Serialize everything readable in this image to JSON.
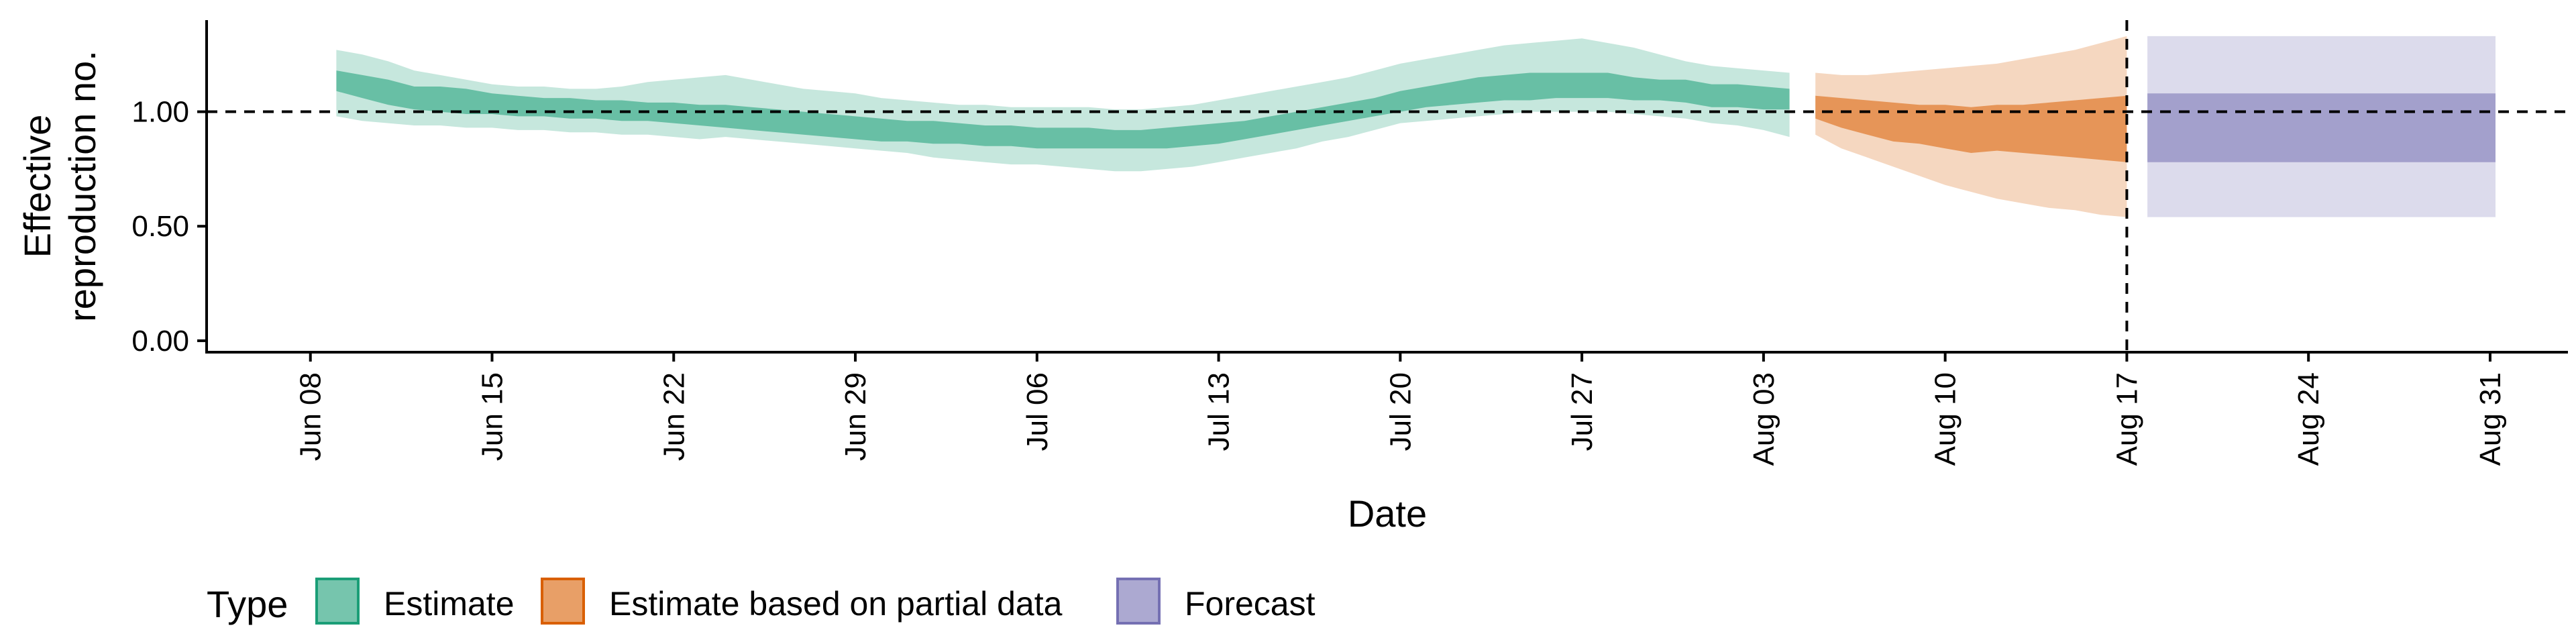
{
  "chart_data": {
    "type": "area",
    "xlabel": "Date",
    "ylabel_lines": [
      "Effective",
      "reproduction no."
    ],
    "ylim": [
      -0.05,
      1.4
    ],
    "y_ticks": [
      0.0,
      0.5,
      1.0
    ],
    "y_tick_labels": [
      "0.00",
      "0.50",
      "1.00"
    ],
    "x_range": [
      "2020-06-04",
      "2020-09-03"
    ],
    "x_ticks": [
      "2020-06-08",
      "2020-06-15",
      "2020-06-22",
      "2020-06-29",
      "2020-07-06",
      "2020-07-13",
      "2020-07-20",
      "2020-07-27",
      "2020-08-03",
      "2020-08-10",
      "2020-08-17",
      "2020-08-24",
      "2020-08-31"
    ],
    "x_tick_labels": [
      "Jun 08",
      "Jun 15",
      "Jun 22",
      "Jun 29",
      "Jul 06",
      "Jul 13",
      "Jul 20",
      "Jul 27",
      "Aug 03",
      "Aug 10",
      "Aug 17",
      "Aug 24",
      "Aug 31"
    ],
    "reference_hline": 1.0,
    "reference_vline": "2020-08-17",
    "grid": false,
    "legend_position": "bottom-left",
    "legend_title": "Type",
    "series": [
      {
        "name": "Estimate",
        "color": "#1b9e77",
        "dates": [
          "2020-06-09",
          "2020-06-10",
          "2020-06-11",
          "2020-06-12",
          "2020-06-13",
          "2020-06-14",
          "2020-06-15",
          "2020-06-16",
          "2020-06-17",
          "2020-06-18",
          "2020-06-19",
          "2020-06-20",
          "2020-06-21",
          "2020-06-22",
          "2020-06-23",
          "2020-06-24",
          "2020-06-25",
          "2020-06-26",
          "2020-06-27",
          "2020-06-28",
          "2020-06-29",
          "2020-06-30",
          "2020-07-01",
          "2020-07-02",
          "2020-07-03",
          "2020-07-04",
          "2020-07-05",
          "2020-07-06",
          "2020-07-07",
          "2020-07-08",
          "2020-07-09",
          "2020-07-10",
          "2020-07-11",
          "2020-07-12",
          "2020-07-13",
          "2020-07-14",
          "2020-07-15",
          "2020-07-16",
          "2020-07-17",
          "2020-07-18",
          "2020-07-19",
          "2020-07-20",
          "2020-07-21",
          "2020-07-22",
          "2020-07-23",
          "2020-07-24",
          "2020-07-25",
          "2020-07-26",
          "2020-07-27",
          "2020-07-28",
          "2020-07-29",
          "2020-07-30",
          "2020-07-31",
          "2020-08-01",
          "2020-08-02",
          "2020-08-03",
          "2020-08-04"
        ],
        "lower_90": [
          0.98,
          0.96,
          0.95,
          0.94,
          0.94,
          0.93,
          0.93,
          0.92,
          0.92,
          0.91,
          0.91,
          0.9,
          0.9,
          0.89,
          0.88,
          0.89,
          0.88,
          0.87,
          0.86,
          0.85,
          0.84,
          0.83,
          0.82,
          0.8,
          0.79,
          0.78,
          0.77,
          0.77,
          0.76,
          0.75,
          0.74,
          0.74,
          0.75,
          0.76,
          0.78,
          0.8,
          0.82,
          0.84,
          0.87,
          0.89,
          0.92,
          0.95,
          0.96,
          0.97,
          0.98,
          0.99,
          1.0,
          1.0,
          1.0,
          1.0,
          0.99,
          0.98,
          0.97,
          0.95,
          0.94,
          0.92,
          0.89
        ],
        "upper_90": [
          1.27,
          1.25,
          1.22,
          1.18,
          1.16,
          1.14,
          1.12,
          1.11,
          1.11,
          1.1,
          1.1,
          1.11,
          1.13,
          1.14,
          1.15,
          1.16,
          1.14,
          1.12,
          1.1,
          1.09,
          1.08,
          1.06,
          1.05,
          1.04,
          1.03,
          1.03,
          1.02,
          1.02,
          1.02,
          1.02,
          1.01,
          1.01,
          1.02,
          1.03,
          1.05,
          1.07,
          1.09,
          1.11,
          1.13,
          1.15,
          1.18,
          1.21,
          1.23,
          1.25,
          1.27,
          1.29,
          1.3,
          1.31,
          1.32,
          1.3,
          1.28,
          1.25,
          1.22,
          1.2,
          1.19,
          1.18,
          1.17
        ],
        "lower_50": [
          1.09,
          1.06,
          1.03,
          1.01,
          1.0,
          0.99,
          0.99,
          0.98,
          0.98,
          0.97,
          0.97,
          0.96,
          0.96,
          0.95,
          0.94,
          0.93,
          0.92,
          0.91,
          0.9,
          0.89,
          0.88,
          0.87,
          0.87,
          0.86,
          0.86,
          0.85,
          0.85,
          0.84,
          0.84,
          0.84,
          0.84,
          0.84,
          0.84,
          0.85,
          0.86,
          0.88,
          0.9,
          0.92,
          0.94,
          0.96,
          0.98,
          1.0,
          1.02,
          1.03,
          1.04,
          1.05,
          1.05,
          1.06,
          1.06,
          1.06,
          1.05,
          1.05,
          1.04,
          1.02,
          1.02,
          1.01,
          1.01
        ],
        "upper_50": [
          1.18,
          1.16,
          1.14,
          1.11,
          1.11,
          1.1,
          1.08,
          1.07,
          1.06,
          1.06,
          1.05,
          1.05,
          1.04,
          1.04,
          1.03,
          1.03,
          1.02,
          1.01,
          1.0,
          0.99,
          0.98,
          0.97,
          0.96,
          0.96,
          0.95,
          0.94,
          0.94,
          0.93,
          0.93,
          0.93,
          0.92,
          0.92,
          0.93,
          0.94,
          0.95,
          0.96,
          0.98,
          1.0,
          1.02,
          1.04,
          1.06,
          1.09,
          1.11,
          1.13,
          1.15,
          1.16,
          1.17,
          1.17,
          1.17,
          1.17,
          1.15,
          1.14,
          1.14,
          1.12,
          1.12,
          1.11,
          1.1
        ]
      },
      {
        "name": "Estimate based on partial data",
        "color": "#d95f02",
        "dates": [
          "2020-08-05",
          "2020-08-06",
          "2020-08-07",
          "2020-08-08",
          "2020-08-09",
          "2020-08-10",
          "2020-08-11",
          "2020-08-12",
          "2020-08-13",
          "2020-08-14",
          "2020-08-15",
          "2020-08-16",
          "2020-08-17"
        ],
        "lower_90": [
          0.9,
          0.84,
          0.8,
          0.76,
          0.72,
          0.68,
          0.65,
          0.62,
          0.6,
          0.58,
          0.57,
          0.55,
          0.54
        ],
        "upper_90": [
          1.17,
          1.16,
          1.16,
          1.17,
          1.18,
          1.19,
          1.2,
          1.21,
          1.23,
          1.25,
          1.27,
          1.3,
          1.33
        ],
        "lower_50": [
          0.97,
          0.93,
          0.9,
          0.87,
          0.86,
          0.84,
          0.82,
          0.83,
          0.82,
          0.81,
          0.8,
          0.79,
          0.78
        ],
        "upper_50": [
          1.07,
          1.06,
          1.05,
          1.04,
          1.03,
          1.03,
          1.02,
          1.03,
          1.03,
          1.04,
          1.05,
          1.06,
          1.07
        ]
      },
      {
        "name": "Forecast",
        "color": "#7570b3",
        "dates": [
          "2020-08-18",
          "2020-08-31"
        ],
        "lower_90": [
          0.54,
          0.54
        ],
        "upper_90": [
          1.33,
          1.33
        ],
        "lower_50": [
          0.78,
          0.78
        ],
        "upper_50": [
          1.08,
          1.08
        ]
      }
    ]
  }
}
